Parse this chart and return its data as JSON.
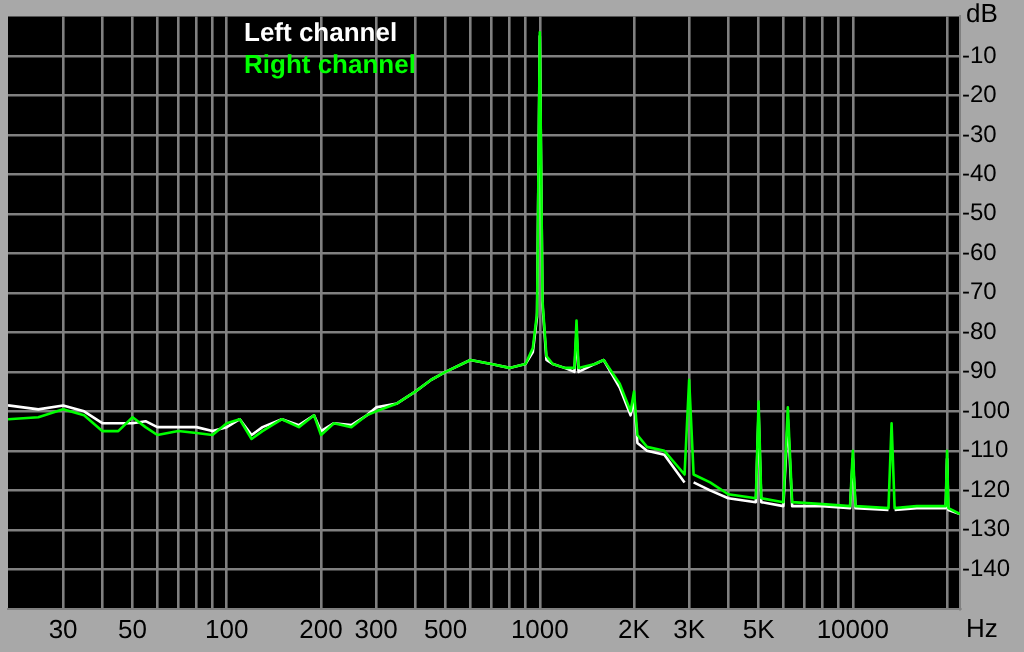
{
  "chart_data": {
    "type": "line",
    "xlabel": "Hz",
    "ylabel": "dB",
    "log": "x",
    "grid": true,
    "legend": "top left",
    "marker": "none",
    "line_style": "solid",
    "xlim": [
      20,
      22000
    ],
    "ylim": [
      -150,
      0
    ],
    "xticks": [
      30,
      {
        "value": 40,
        "label": null
      },
      50,
      {
        "value": 60,
        "label": null
      },
      {
        "value": 70,
        "label": null
      },
      {
        "value": 80,
        "label": null
      },
      {
        "value": 90,
        "label": null
      },
      100,
      200,
      300,
      {
        "value": 400,
        "label": null
      },
      500,
      {
        "value": 600,
        "label": null
      },
      {
        "value": 700,
        "label": null
      },
      {
        "value": 800,
        "label": null
      },
      {
        "value": 900,
        "label": null
      },
      1000,
      {
        "value": 2000,
        "label": "2K"
      },
      {
        "value": 3000,
        "label": "3K"
      },
      {
        "value": 4000,
        "label": null
      },
      {
        "value": 5000,
        "label": "5K"
      },
      {
        "value": 6000,
        "label": null
      },
      {
        "value": 7000,
        "label": null
      },
      {
        "value": 8000,
        "label": null
      },
      {
        "value": 9000,
        "label": null
      },
      10000,
      {
        "value": 20000,
        "label": null
      }
    ],
    "yticks": [
      -140,
      -130,
      -120,
      -110,
      -100,
      -90,
      -80,
      -70,
      -60,
      -50,
      -40,
      -30,
      -20,
      -10
    ],
    "x": [
      20,
      25,
      30,
      35,
      40,
      45,
      50,
      55,
      60,
      70,
      80,
      90,
      100,
      110,
      120,
      130,
      150,
      170,
      190,
      200,
      220,
      250,
      280,
      300,
      350,
      400,
      450,
      500,
      600,
      700,
      800,
      900,
      950,
      980,
      1000,
      1020,
      1050,
      1100,
      1200,
      1290,
      1310,
      1330,
      1500,
      1600,
      1800,
      1950,
      2000,
      2050,
      2200,
      2500,
      2900,
      3000,
      3100,
      3500,
      4000,
      4900,
      5000,
      5100,
      6000,
      6200,
      6400,
      8000,
      9800,
      10000,
      10200,
      13000,
      13300,
      13600,
      16000,
      18000,
      19800,
      20000,
      20200,
      22000
    ],
    "series": [
      {
        "name": "Left channel",
        "color": "#ffffff",
        "values": [
          -98.5,
          -99.5,
          -98.5,
          -100,
          -103,
          -103,
          -103,
          -102.5,
          -104,
          -104,
          -104,
          -105,
          -104,
          -102,
          -106,
          -104,
          -102,
          -103.5,
          -101,
          -105,
          -103,
          -103.5,
          -101,
          -99,
          -98,
          -95,
          -92,
          -90,
          -87,
          -88,
          -89,
          -88,
          -85,
          -76,
          -5,
          -73,
          -87,
          -88,
          -89,
          -90,
          -80,
          -90,
          -88,
          -87,
          -94,
          -101,
          -97,
          -108,
          -110,
          -111,
          -118,
          null,
          -118,
          -120,
          -122,
          -123,
          -100,
          -123,
          -124,
          -102,
          -124,
          -124,
          -124.5,
          -112,
          -124.5,
          -125,
          null,
          -125,
          -124.5,
          -124.5,
          -124.5,
          -112,
          -125,
          -126
        ]
      },
      {
        "name": "Right channel",
        "color": "#00ff00",
        "values": [
          -102,
          -101.5,
          -99.5,
          -101,
          -105,
          -105,
          -101.5,
          -104,
          -106,
          -105,
          -105.5,
          -106,
          -103,
          -102,
          -107,
          -105,
          -102,
          -104,
          -101,
          -106,
          -103,
          -104,
          -101,
          -100,
          -98,
          -95,
          -92,
          -90,
          -87,
          -88,
          -89,
          -88,
          -84,
          -75,
          -4,
          -72,
          -86,
          -88,
          -89,
          -89,
          -77,
          -89,
          -88,
          -87,
          -93,
          -100,
          -95,
          -106,
          -109,
          -110,
          -116,
          -92,
          -116,
          -118,
          -121,
          -122,
          -97.5,
          -122,
          -123,
          -99,
          -123,
          -123.5,
          -124,
          -110,
          -124,
          -124.5,
          -103,
          -124.5,
          -124,
          -124,
          -124,
          -110,
          -124.5,
          -126
        ]
      }
    ]
  }
}
